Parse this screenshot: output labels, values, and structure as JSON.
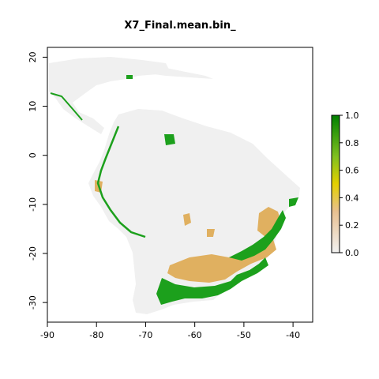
{
  "title": "X7_Final.mean.bin_",
  "map": {
    "x_ticks": [
      -90,
      -80,
      -70,
      -60,
      -50,
      -40
    ],
    "y_ticks": [
      20,
      10,
      0,
      -10,
      -20,
      -30
    ],
    "x_range": [
      -90,
      -36
    ],
    "y_range": [
      -34,
      22
    ],
    "land_color": "#f0f0f0",
    "suitable_color": "#1ca01c",
    "mid_color": "#e0b060"
  },
  "legend": {
    "ticks": [
      "0.0",
      "0.2",
      "0.4",
      "0.6",
      "0.8",
      "1.0"
    ],
    "min": 0.0,
    "max": 1.0,
    "colors": [
      "#f2f2f2",
      "#e8c090",
      "#e4c000",
      "#80c020",
      "#008000"
    ]
  }
}
